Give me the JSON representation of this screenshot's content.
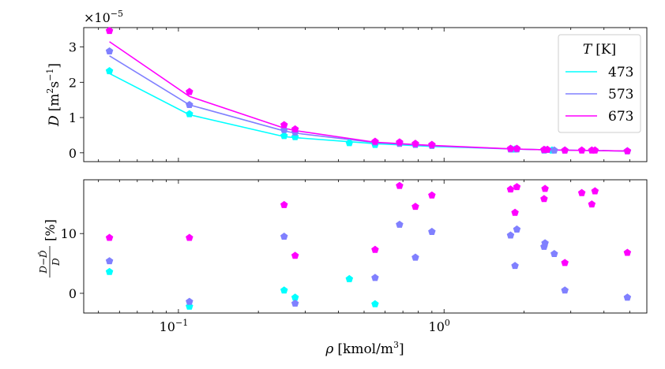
{
  "chart_data": [
    {
      "type": "scatter+line",
      "xscale": "log",
      "xlim": [
        0.044,
        5.8
      ],
      "ylim": [
        -0.25,
        3.55
      ],
      "y_multiplier": "×10",
      "y_multiplier_exp": "−5",
      "ylabel": {
        "main": "D",
        "bracket": "[m",
        "sup1": "2",
        "mid": "s",
        "sup2": "−1",
        "end": "]"
      },
      "yticks": [
        0,
        1,
        2,
        3
      ],
      "ytick_labels": [
        "0",
        "1",
        "2",
        "3"
      ],
      "legend": {
        "title_var": "T",
        "title_unit": "[K]",
        "placement": "upper-right",
        "entries": [
          "473",
          "573",
          "673"
        ]
      },
      "series": [
        {
          "name": "473",
          "color": "#00ffff",
          "points": [
            [
              0.055,
              2.32
            ],
            [
              0.11,
              1.1
            ],
            [
              0.25,
              0.48
            ],
            [
              0.275,
              0.45
            ],
            [
              0.44,
              0.28
            ],
            [
              0.55,
              0.23
            ],
            [
              1.8,
              0.1
            ],
            [
              1.85,
              0.1
            ],
            [
              2.4,
              0.08
            ],
            [
              2.55,
              0.07
            ],
            [
              4.9,
              0.05
            ]
          ],
          "line": [
            [
              0.055,
              2.25
            ],
            [
              0.11,
              1.08
            ],
            [
              0.25,
              0.46
            ],
            [
              0.275,
              0.43
            ],
            [
              0.55,
              0.26
            ],
            [
              0.9,
              0.18
            ],
            [
              1.8,
              0.11
            ],
            [
              2.6,
              0.08
            ],
            [
              4.9,
              0.05
            ]
          ]
        },
        {
          "name": "573",
          "color": "#8080ff",
          "points": [
            [
              0.055,
              2.88
            ],
            [
              0.11,
              1.36
            ],
            [
              0.25,
              0.65
            ],
            [
              0.275,
              0.58
            ],
            [
              0.55,
              0.3
            ],
            [
              0.68,
              0.26
            ],
            [
              0.78,
              0.23
            ],
            [
              0.9,
              0.2
            ],
            [
              1.78,
              0.1
            ],
            [
              1.88,
              0.1
            ],
            [
              2.38,
              0.07
            ],
            [
              2.6,
              0.07
            ],
            [
              2.85,
              0.07
            ],
            [
              4.9,
              0.05
            ]
          ],
          "line": [
            [
              0.055,
              2.75
            ],
            [
              0.11,
              1.36
            ],
            [
              0.25,
              0.62
            ],
            [
              0.275,
              0.56
            ],
            [
              0.55,
              0.29
            ],
            [
              0.9,
              0.2
            ],
            [
              1.8,
              0.11
            ],
            [
              2.6,
              0.08
            ],
            [
              4.9,
              0.05
            ]
          ]
        },
        {
          "name": "673",
          "color": "#ff00ff",
          "points": [
            [
              0.055,
              3.46
            ],
            [
              0.11,
              1.73
            ],
            [
              0.25,
              0.79
            ],
            [
              0.275,
              0.67
            ],
            [
              0.55,
              0.32
            ],
            [
              0.68,
              0.3
            ],
            [
              0.78,
              0.26
            ],
            [
              0.9,
              0.23
            ],
            [
              1.78,
              0.12
            ],
            [
              1.88,
              0.12
            ],
            [
              2.38,
              0.09
            ],
            [
              2.45,
              0.09
            ],
            [
              2.85,
              0.07
            ],
            [
              3.3,
              0.07
            ],
            [
              3.6,
              0.07
            ],
            [
              3.7,
              0.07
            ],
            [
              4.9,
              0.05
            ]
          ],
          "line": [
            [
              0.055,
              3.15
            ],
            [
              0.11,
              1.6
            ],
            [
              0.25,
              0.7
            ],
            [
              0.275,
              0.63
            ],
            [
              0.55,
              0.3
            ],
            [
              0.9,
              0.21
            ],
            [
              1.8,
              0.11
            ],
            [
              2.6,
              0.08
            ],
            [
              4.9,
              0.05
            ]
          ]
        }
      ]
    },
    {
      "type": "scatter",
      "xscale": "log",
      "xlim": [
        0.044,
        5.8
      ],
      "ylim": [
        -3.3,
        19.0
      ],
      "xlabel": {
        "var": "ρ",
        "unit": "[kmol/m",
        "sup": "3",
        "end": "]"
      },
      "ylabel": {
        "num": "D−D̂",
        "den": "D",
        "unit": "[%]"
      },
      "yticks": [
        0,
        10
      ],
      "ytick_labels": [
        "0",
        "10"
      ],
      "xticks": [
        0.1,
        1
      ],
      "xtick_base": "10",
      "xtick_exps": [
        "−1",
        "0"
      ],
      "series": [
        {
          "name": "473",
          "color": "#00ffff",
          "points": [
            [
              0.055,
              3.6
            ],
            [
              0.11,
              -2.2
            ],
            [
              0.25,
              0.5
            ],
            [
              0.275,
              -0.7
            ],
            [
              0.44,
              2.4
            ],
            [
              0.55,
              -1.8
            ]
          ]
        },
        {
          "name": "573",
          "color": "#8080ff",
          "points": [
            [
              0.055,
              5.4
            ],
            [
              0.11,
              -1.4
            ],
            [
              0.25,
              9.5
            ],
            [
              0.275,
              -1.7
            ],
            [
              0.55,
              2.6
            ],
            [
              0.68,
              11.5
            ],
            [
              0.78,
              6.0
            ],
            [
              0.9,
              10.3
            ],
            [
              1.78,
              9.7
            ],
            [
              1.88,
              10.7
            ],
            [
              1.85,
              4.6
            ],
            [
              2.38,
              7.8
            ],
            [
              2.4,
              8.4
            ],
            [
              2.6,
              6.6
            ],
            [
              2.85,
              0.5
            ],
            [
              4.9,
              -0.7
            ]
          ]
        },
        {
          "name": "673",
          "color": "#ff00ff",
          "points": [
            [
              0.055,
              9.3
            ],
            [
              0.11,
              9.3
            ],
            [
              0.25,
              14.8
            ],
            [
              0.275,
              6.3
            ],
            [
              0.55,
              7.3
            ],
            [
              0.68,
              18.0
            ],
            [
              0.78,
              14.5
            ],
            [
              0.9,
              16.4
            ],
            [
              1.78,
              17.4
            ],
            [
              1.88,
              17.8
            ],
            [
              1.85,
              13.5
            ],
            [
              2.38,
              15.8
            ],
            [
              2.4,
              17.5
            ],
            [
              2.85,
              5.1
            ],
            [
              3.3,
              16.8
            ],
            [
              3.6,
              14.9
            ],
            [
              3.7,
              17.1
            ],
            [
              4.9,
              6.8
            ]
          ]
        }
      ]
    }
  ]
}
